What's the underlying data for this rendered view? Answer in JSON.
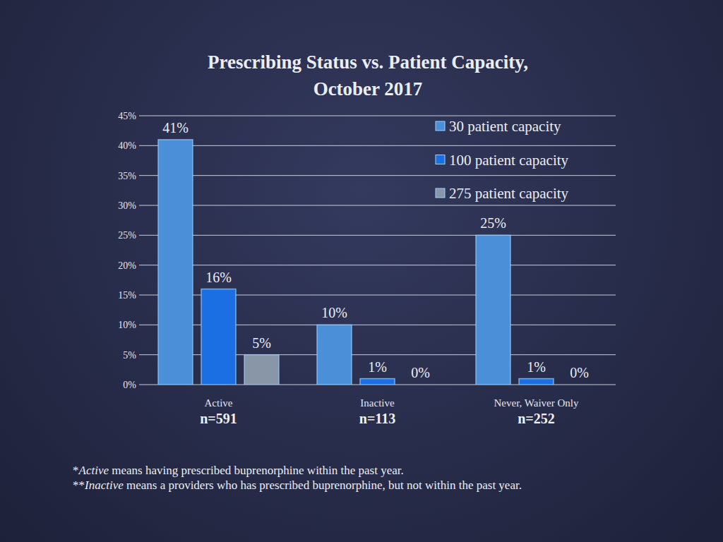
{
  "chart_data": {
    "type": "bar",
    "title": "Prescribing Status vs. Patient Capacity,",
    "subtitle": "October 2017",
    "categories": [
      "Active",
      "Inactive",
      "Never, Waiver Only"
    ],
    "category_counts": [
      "n=591",
      "n=113",
      "n=252"
    ],
    "series": [
      {
        "name": "30 patient capacity",
        "color": "#4b8fd8",
        "values": [
          41,
          10,
          25
        ],
        "value_labels": [
          "41%",
          "10%",
          "25%"
        ]
      },
      {
        "name": "100 patient capacity",
        "color": "#1b6fe2",
        "values": [
          16,
          1,
          1
        ],
        "value_labels": [
          "16%",
          "1%",
          "1%"
        ]
      },
      {
        "name": "275 patient capacity",
        "color": "#8996a8",
        "values": [
          5,
          0,
          0
        ],
        "value_labels": [
          "5%",
          "0%",
          "0%"
        ]
      }
    ],
    "ylim": [
      0,
      45
    ],
    "yticks": [
      {
        "value": 0,
        "label": "0%"
      },
      {
        "value": 5,
        "label": "5%"
      },
      {
        "value": 10,
        "label": "10%"
      },
      {
        "value": 15,
        "label": "15%"
      },
      {
        "value": 20,
        "label": "20%"
      },
      {
        "value": 25,
        "label": "25%"
      },
      {
        "value": 30,
        "label": "30%"
      },
      {
        "value": 35,
        "label": "35%"
      },
      {
        "value": 40,
        "label": "40%"
      },
      {
        "value": 45,
        "label": "45%"
      }
    ],
    "grid": true,
    "legend": "upper right",
    "data_labels": true,
    "footnotes": [
      {
        "prefix": "*",
        "term": "Active",
        "text": " means having prescribed buprenorphine within the past year."
      },
      {
        "prefix": "**",
        "term": "Inactive",
        "text": " means a providers who has prescribed buprenorphine, but not within the past year."
      }
    ]
  }
}
